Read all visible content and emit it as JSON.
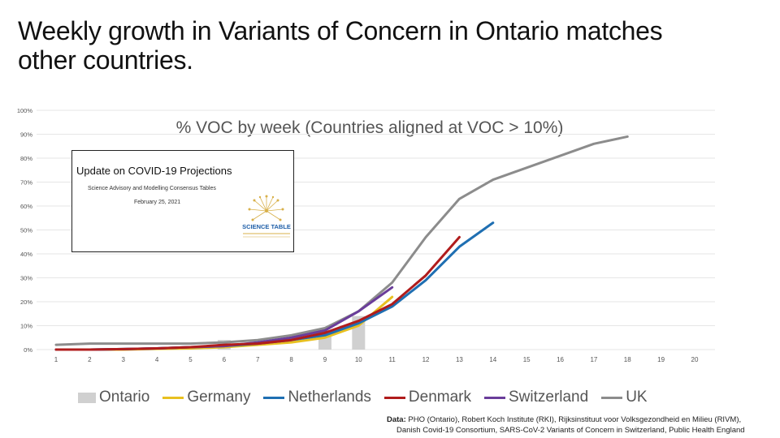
{
  "slide": {
    "title_line1": "Weekly growth in Variants of Concern in Ontario matches",
    "title_line2": "other countries."
  },
  "inset": {
    "title": "Update on COVID-19 Projections",
    "subtitle": "Science Advisory and Modelling Consensus Tables",
    "date": "February 25, 2021",
    "logo_text": "SCIENCE TABLE"
  },
  "source": {
    "label": "Data:",
    "line1": "PHO (Ontario), Robert Koch Institute (RKI), Rijksinstituut voor Volksgezondheid en Milieu (RIVM),",
    "line2": "Danish Covid-19 Consortium, SARS-CoV-2 Variants of Concern in Switzerland, Public Health England"
  },
  "colors": {
    "ontario": "#d0d0d0",
    "germany": "#e8c020",
    "netherlands": "#1f6fb2",
    "denmark": "#b01c1c",
    "switzerland": "#6a3d9a",
    "uk": "#8c8c8c",
    "grid": "#e6e6e6",
    "axis_text": "#555555"
  },
  "chart_data": {
    "type": "bar",
    "title": "% VOC by week (Countries aligned at VOC > 10%)",
    "xlabel": "",
    "ylabel": "",
    "ylim": [
      0,
      100
    ],
    "yticks": [
      "0%",
      "10%",
      "20%",
      "30%",
      "40%",
      "50%",
      "60%",
      "70%",
      "80%",
      "90%",
      "100%"
    ],
    "categories": [
      "1",
      "2",
      "3",
      "4",
      "5",
      "6",
      "7",
      "8",
      "9",
      "10",
      "11",
      "12",
      "13",
      "14",
      "15",
      "16",
      "17",
      "18",
      "19",
      "20"
    ],
    "grid": true,
    "legend_position": "bottom",
    "bar_series": {
      "name": "Ontario",
      "values": [
        0,
        0,
        0,
        0,
        0,
        4,
        0,
        0,
        8,
        14,
        null,
        null,
        null,
        null,
        null,
        null,
        null,
        null,
        null,
        null
      ]
    },
    "line_series": [
      {
        "name": "Germany",
        "color_key": "germany",
        "values": [
          0,
          0,
          0,
          0.3,
          0.5,
          1,
          2,
          3,
          5,
          10,
          22,
          null,
          null,
          null,
          null,
          null,
          null,
          null,
          null,
          null
        ]
      },
      {
        "name": "Netherlands",
        "color_key": "netherlands",
        "values": [
          0,
          0,
          0.2,
          0.5,
          1,
          1.5,
          2.5,
          4,
          6,
          11,
          18,
          29,
          43,
          53,
          null,
          null,
          null,
          null,
          null,
          null
        ]
      },
      {
        "name": "Denmark",
        "color_key": "denmark",
        "values": [
          0,
          0,
          0.2,
          0.5,
          1,
          2,
          2.5,
          4,
          7,
          12,
          19,
          31,
          47,
          null,
          null,
          null,
          null,
          null,
          null,
          null
        ]
      },
      {
        "name": "Switzerland",
        "color_key": "switzerland",
        "values": [
          0,
          0,
          0.2,
          0.5,
          1,
          1.5,
          3,
          5,
          8,
          16,
          26,
          null,
          null,
          null,
          null,
          null,
          null,
          null,
          null,
          null
        ]
      },
      {
        "name": "UK",
        "color_key": "uk",
        "values": [
          2,
          2.5,
          2.5,
          2.5,
          2.5,
          3,
          4,
          6,
          9,
          16,
          28,
          47,
          63,
          71,
          76,
          81,
          86,
          89,
          null,
          null
        ]
      }
    ]
  }
}
